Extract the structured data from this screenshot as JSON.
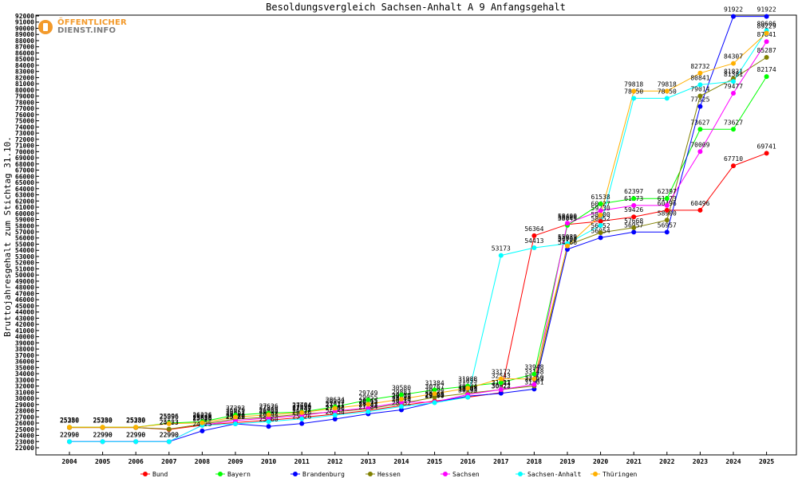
{
  "chart_data": {
    "type": "line",
    "title": "Besoldungsvergleich Sachsen-Anhalt A 9 Anfangsgehalt",
    "xlabel": "",
    "ylabel": "Bruttojahresgehalt zum Stichtag 31.10.",
    "ylim": [
      22000,
      92000
    ],
    "ytick_step": 1000,
    "grid": false,
    "legend_position": "bottom",
    "categories": [
      "2004",
      "2005",
      "2006",
      "2007",
      "2008",
      "2009",
      "2010",
      "2011",
      "2012",
      "2013",
      "2014",
      "2015",
      "2016",
      "2017",
      "2018",
      "2019",
      "2020",
      "2021",
      "2022",
      "2023",
      "2024",
      "2025"
    ],
    "series": [
      {
        "name": "Bund",
        "color": "#ff0000",
        "values": [
          25280,
          25280,
          25280,
          24953,
          25656,
          26079,
          26452,
          26927,
          27442,
          28032,
          28840,
          29569,
          30193,
          30922,
          56364,
          58200,
          58700,
          59426,
          60496,
          60496,
          67710,
          69741
        ]
      },
      {
        "name": "Bayern",
        "color": "#00ff00",
        "values": [
          25330,
          25330,
          25330,
          25996,
          26226,
          27292,
          27626,
          27784,
          28634,
          29749,
          30580,
          31384,
          31988,
          32543,
          33948,
          58043,
          61538,
          62397,
          62397,
          73627,
          73627,
          82174
        ]
      },
      {
        "name": "Brandenburg",
        "color": "#0000ff",
        "values": [
          22990,
          22990,
          22990,
          22990,
          24725,
          25879,
          25460,
          25926,
          26654,
          27484,
          28132,
          29360,
          30373,
          30823,
          31501,
          54166,
          56054,
          56957,
          56957,
          77325,
          91922,
          91922
        ]
      },
      {
        "name": "Hessen",
        "color": "#808000",
        "values": [
          25280,
          25280,
          25280,
          25023,
          25826,
          26652,
          26955,
          27450,
          27811,
          28312,
          29173,
          30194,
          30834,
          31413,
          32003,
          54843,
          56852,
          57668,
          58900,
          79014,
          81831,
          85287
        ]
      },
      {
        "name": "Sachsen",
        "color": "#ff00ff",
        "values": [
          22990,
          22990,
          22990,
          22990,
          25655,
          26403,
          26808,
          27242,
          27927,
          28465,
          29380,
          29395,
          30608,
          31431,
          32250,
          58400,
          60427,
          61273,
          61273,
          70009,
          79477,
          87841
        ]
      },
      {
        "name": "Sachsen-Anhalt",
        "color": "#00ffff",
        "values": [
          22990,
          22990,
          22990,
          22990,
          25626,
          25880,
          26244,
          26676,
          27286,
          27843,
          28674,
          29300,
          30193,
          53173,
          54413,
          55089,
          58052,
          78650,
          78650,
          80841,
          81381,
          89606
        ]
      },
      {
        "name": "Thüringen",
        "color": "#ffb000",
        "values": [
          25330,
          25330,
          25330,
          25896,
          26036,
          26979,
          27336,
          27694,
          28393,
          29055,
          29883,
          30767,
          31655,
          33172,
          33148,
          54700,
          59730,
          79818,
          79818,
          82732,
          84307,
          89229
        ]
      }
    ]
  },
  "logo": {
    "line1": "ÖFFENTLICHER",
    "line2": "DIENST.INFO"
  }
}
